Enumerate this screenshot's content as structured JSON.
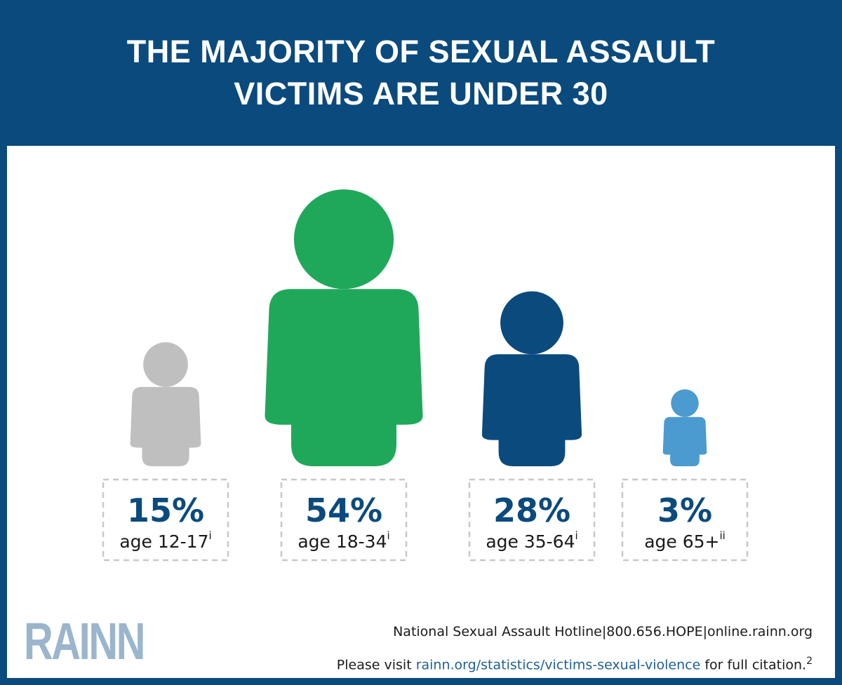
{
  "chart_data": {
    "type": "pictograph",
    "title": "THE MAJORITY OF SEXUAL ASSAULT VICTIMS ARE UNDER 30",
    "categories": [
      "age 12-17",
      "age 18-34",
      "age 35-64",
      "age 65+"
    ],
    "notes": [
      "i",
      "i",
      "i",
      "ii"
    ],
    "values": [
      15,
      54,
      28,
      3
    ],
    "value_labels": [
      "15%",
      "54%",
      "28%",
      "3%"
    ],
    "colors": [
      "#c0bfbf",
      "#20a85a",
      "#0b4a7d",
      "#4b9bd0"
    ]
  },
  "footer": {
    "logo": "RAINN",
    "hotline": "National Sexual Assault Hotline|800.656.HOPE|online.rainn.org",
    "citation_prefix": "Please visit",
    "citation_link": "rainn.org/statistics/victims-sexual-violence",
    "citation_suffix": "for full citation.",
    "citation_note": "2"
  }
}
